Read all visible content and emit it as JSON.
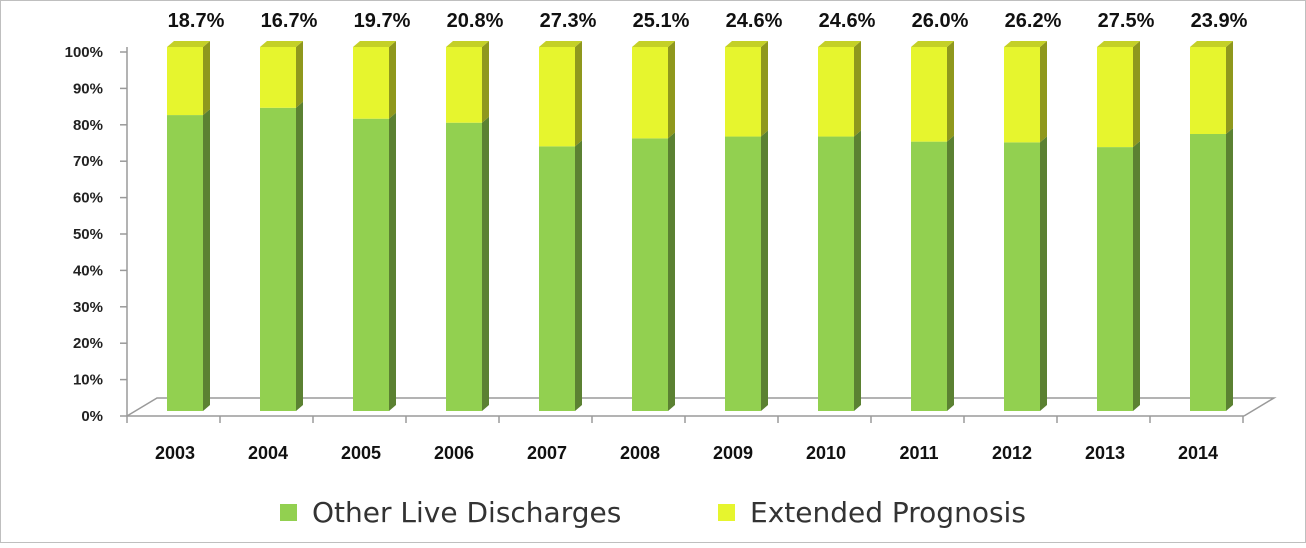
{
  "chart_data": {
    "type": "bar",
    "stacked": true,
    "percent_stacked": true,
    "three_d": true,
    "categories": [
      "2003",
      "2004",
      "2005",
      "2006",
      "2007",
      "2008",
      "2009",
      "2010",
      "2011",
      "2012",
      "2013",
      "2014"
    ],
    "series": [
      {
        "name": "Other Live Discharges",
        "color": "#92d050",
        "values": [
          81.3,
          83.3,
          80.3,
          79.2,
          72.7,
          74.9,
          75.4,
          75.4,
          74.0,
          73.8,
          72.5,
          76.1
        ]
      },
      {
        "name": "Extended Prognosis",
        "color": "#e6f52e",
        "values": [
          18.7,
          16.7,
          19.7,
          20.8,
          27.3,
          25.1,
          24.6,
          24.6,
          26.0,
          26.2,
          27.5,
          23.9
        ]
      }
    ],
    "data_labels": [
      "18.7%",
      "16.7%",
      "19.7%",
      "20.8%",
      "27.3%",
      "25.1%",
      "24.6%",
      "24.6%",
      "26.0%",
      "26.2%",
      "27.5%",
      "23.9%"
    ],
    "y_ticks": [
      "0%",
      "10%",
      "20%",
      "30%",
      "40%",
      "50%",
      "60%",
      "70%",
      "80%",
      "90%",
      "100%"
    ],
    "ylim": [
      0,
      100
    ],
    "grid": false,
    "legend_position": "bottom"
  }
}
